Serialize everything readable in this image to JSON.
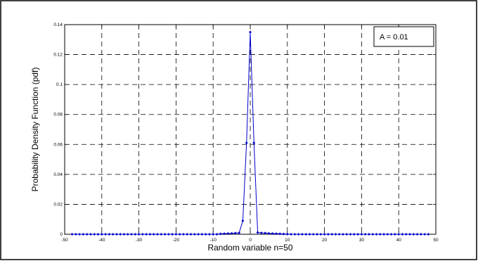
{
  "chart_data": {
    "type": "line",
    "xlabel": "Random variable n=50",
    "ylabel": "Probability Density Function (pdf)",
    "xlim": [
      -50,
      50
    ],
    "ylim": [
      0,
      0.14
    ],
    "xticks": [
      -50,
      -40,
      -30,
      -20,
      -10,
      0,
      10,
      20,
      30,
      40,
      50
    ],
    "yticks": [
      0,
      0.02,
      0.04,
      0.06,
      0.08,
      0.1,
      0.12,
      0.14
    ],
    "grid": true,
    "annotation": "A = 0.01",
    "annotation_position": "top-right",
    "color": "#0000cc",
    "x": [
      -48,
      -47,
      -46,
      -45,
      -44,
      -43,
      -42,
      -41,
      -40,
      -39,
      -38,
      -37,
      -36,
      -35,
      -34,
      -33,
      -32,
      -31,
      -30,
      -29,
      -28,
      -27,
      -26,
      -25,
      -24,
      -23,
      -22,
      -21,
      -20,
      -19,
      -18,
      -17,
      -16,
      -15,
      -14,
      -13,
      -12,
      -11,
      -10,
      -9,
      -8,
      -7,
      -6,
      -5,
      -4,
      -3,
      -2,
      -1,
      0,
      1,
      2,
      3,
      4,
      5,
      6,
      7,
      8,
      9,
      10,
      11,
      12,
      13,
      14,
      15,
      16,
      17,
      18,
      19,
      20,
      21,
      22,
      23,
      24,
      25,
      26,
      27,
      28,
      29,
      30,
      31,
      32,
      33,
      34,
      35,
      36,
      37,
      38,
      39,
      40,
      41,
      42,
      43,
      44,
      45,
      46,
      47,
      48
    ],
    "y": [
      0,
      0,
      0,
      0,
      0,
      0,
      0,
      0,
      0,
      0,
      0,
      0,
      0,
      0,
      0,
      0,
      0,
      0,
      0,
      0,
      0,
      0,
      0,
      0,
      0,
      0,
      0,
      0,
      0,
      0,
      0,
      0,
      0,
      0,
      0,
      0,
      0,
      0,
      0,
      0,
      0.0003,
      0.0004,
      0.0005,
      0.0006,
      0.0008,
      0.0009,
      0.009,
      0.061,
      0.135,
      0.061,
      0.0012,
      0.0009,
      0.0008,
      0.0006,
      0.0005,
      0.0004,
      0.0003,
      0.0002,
      0.0001,
      0,
      0,
      0,
      0,
      0,
      0,
      0,
      0,
      0,
      0,
      0,
      0,
      0,
      0,
      0,
      0,
      0,
      0,
      0,
      0,
      0,
      0,
      0,
      0,
      0,
      0,
      0,
      0,
      0,
      0,
      0,
      0,
      0,
      0,
      0,
      0,
      0,
      0
    ]
  }
}
